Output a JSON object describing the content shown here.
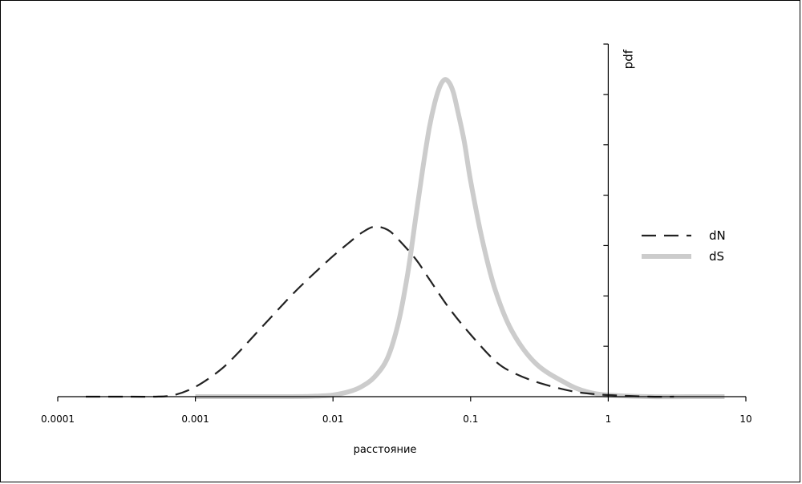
{
  "chart_data": {
    "type": "line",
    "x_scale": "log",
    "xlim": [
      0.0001,
      10
    ],
    "ylim": [
      0,
      1
    ],
    "xticks": [
      {
        "value": 0.0001,
        "label": "0.0001"
      },
      {
        "value": 0.001,
        "label": "0.001"
      },
      {
        "value": 0.01,
        "label": "0.01"
      },
      {
        "value": 0.1,
        "label": "0.1"
      },
      {
        "value": 1,
        "label": "1"
      },
      {
        "value": 10,
        "label": "10"
      }
    ],
    "xlabel": "расстояние",
    "ylabel": "pdf",
    "y_axis_position_x": 1,
    "y_tick_count": 7,
    "y_ticks_labeled": false,
    "legend": {
      "position": "right",
      "entries": [
        "dN",
        "dS"
      ]
    },
    "grid": false,
    "series": [
      {
        "name": "dN",
        "style": "dashed",
        "color": "#222222",
        "x": [
          0.00016,
          0.0003,
          0.0005,
          0.0007,
          0.001,
          0.0015,
          0.002,
          0.003,
          0.005,
          0.007,
          0.01,
          0.013,
          0.016,
          0.02,
          0.025,
          0.03,
          0.04,
          0.05,
          0.07,
          0.1,
          0.15,
          0.2,
          0.3,
          0.5,
          0.7,
          1,
          2,
          3
        ],
        "y": [
          0.0,
          0.0,
          0.0,
          0.005,
          0.03,
          0.08,
          0.13,
          0.21,
          0.31,
          0.37,
          0.43,
          0.47,
          0.5,
          0.52,
          0.51,
          0.48,
          0.42,
          0.36,
          0.27,
          0.19,
          0.11,
          0.075,
          0.045,
          0.02,
          0.01,
          0.005,
          0.0,
          0.0
        ]
      },
      {
        "name": "dS",
        "style": "solid",
        "color": "#cccccc",
        "x": [
          0.001,
          0.005,
          0.008,
          0.01,
          0.013,
          0.016,
          0.02,
          0.025,
          0.03,
          0.035,
          0.04,
          0.045,
          0.05,
          0.055,
          0.06,
          0.065,
          0.07,
          0.075,
          0.08,
          0.09,
          0.1,
          0.12,
          0.15,
          0.2,
          0.3,
          0.5,
          0.7,
          1,
          2,
          4,
          7
        ],
        "y": [
          0.0,
          0.0,
          0.002,
          0.005,
          0.015,
          0.03,
          0.06,
          0.12,
          0.23,
          0.38,
          0.55,
          0.7,
          0.82,
          0.9,
          0.95,
          0.97,
          0.96,
          0.93,
          0.88,
          0.78,
          0.66,
          0.49,
          0.33,
          0.2,
          0.1,
          0.04,
          0.015,
          0.005,
          0.0,
          0.0,
          0.0
        ]
      }
    ]
  }
}
